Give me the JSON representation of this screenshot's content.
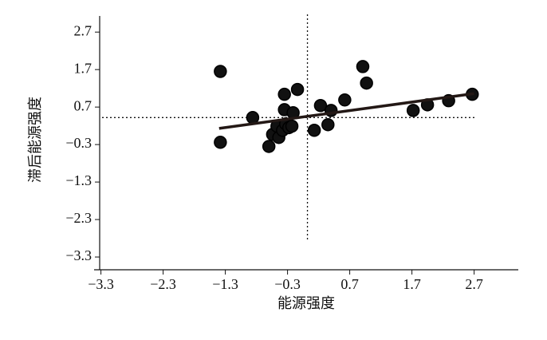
{
  "chart_data": {
    "type": "scatter",
    "xlabel": "能源强度",
    "ylabel": "滞后能源强度",
    "x": [
      -1.38,
      -1.38,
      -0.86,
      -0.6,
      -0.54,
      -0.47,
      -0.44,
      -0.38,
      -0.35,
      -0.35,
      -0.33,
      -0.28,
      -0.23,
      -0.21,
      -0.14,
      0.13,
      0.23,
      0.35,
      0.4,
      0.62,
      0.91,
      0.97,
      1.72,
      1.95,
      2.29,
      2.67
    ],
    "values": [
      1.65,
      -0.24,
      0.42,
      -0.35,
      -0.03,
      0.19,
      -0.11,
      0.08,
      1.04,
      0.63,
      0.25,
      0.15,
      0.19,
      0.55,
      1.17,
      0.08,
      0.74,
      0.23,
      0.61,
      0.89,
      1.78,
      1.34,
      0.61,
      0.76,
      0.87,
      1.04
    ],
    "color": "#111111",
    "fit_line": {
      "x": [
        -1.4,
        2.7
      ],
      "y": [
        0.13,
        1.06
      ]
    },
    "ref_x": 0.02,
    "ref_y": 0.42,
    "xlim": [
      -3.41,
      3.41
    ],
    "ylim": [
      -3.64,
      3.13
    ],
    "xticks": [
      {
        "value": -3.3,
        "label": "−3.3"
      },
      {
        "value": -2.3,
        "label": "−2.3"
      },
      {
        "value": -1.3,
        "label": "−1.3"
      },
      {
        "value": -0.3,
        "label": "−0.3"
      },
      0.7,
      1.7,
      2.7
    ],
    "yticks": [
      2.7,
      1.7,
      0.7,
      {
        "value": -0.3,
        "label": "−0.3"
      },
      {
        "value": -1.3,
        "label": "−1.3"
      },
      {
        "value": -2.3,
        "label": "−2.3"
      },
      {
        "value": -3.3,
        "label": "−3.3"
      }
    ]
  }
}
